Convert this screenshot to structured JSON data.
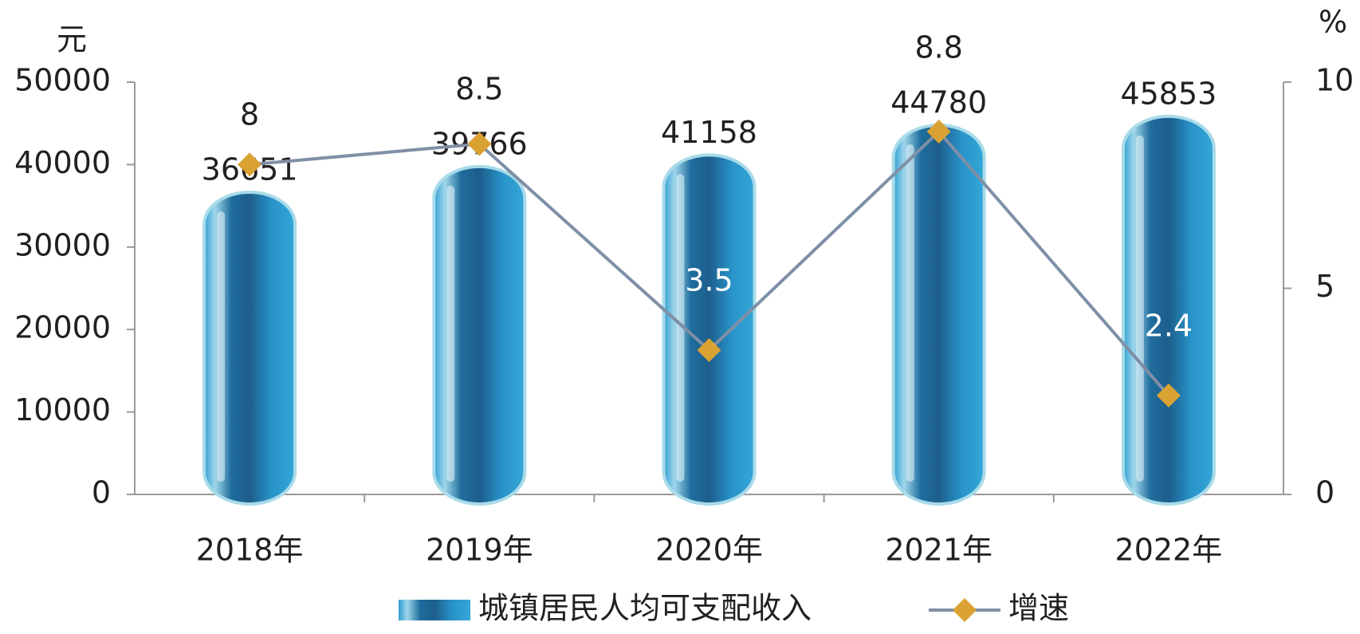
{
  "chart_data": {
    "type": "bar",
    "y_unit": "元",
    "y2_unit": "%",
    "categories": [
      "2018年",
      "2019年",
      "2020年",
      "2021年",
      "2022年"
    ],
    "series": [
      {
        "name": "城镇居民人均可支配收入",
        "type": "bar",
        "color": "#2a8fc4",
        "values": [
          36651,
          39766,
          41158,
          44780,
          45853
        ]
      },
      {
        "name": "增速",
        "type": "line",
        "axis": "y2",
        "color": "#7f8fa6",
        "marker_color": "#d9a232",
        "values": [
          8,
          8.5,
          3.5,
          8.8,
          2.4
        ]
      }
    ],
    "ylim": [
      0,
      50000
    ],
    "yticks": [
      0,
      10000,
      20000,
      30000,
      40000,
      50000
    ],
    "y2lim": [
      0,
      10
    ],
    "y2ticks": [
      0,
      5,
      10
    ],
    "grid": false,
    "legend": "bottom"
  }
}
